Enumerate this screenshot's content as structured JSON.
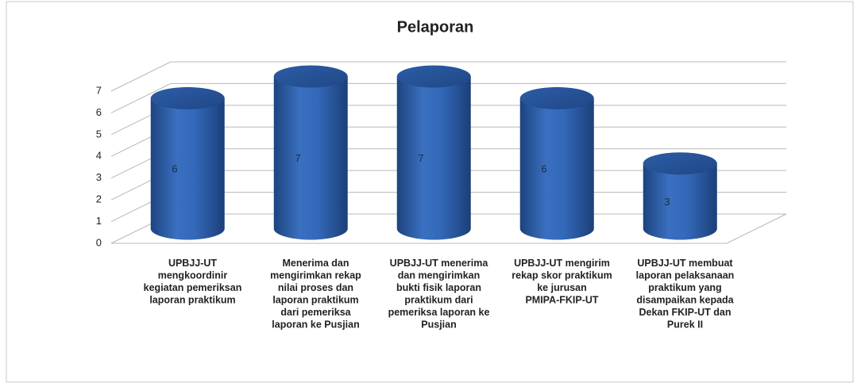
{
  "chart_data": {
    "type": "bar3d",
    "title": "Pelaporan",
    "categories": [
      "UPBJJ-UT mengkoordinir kegiatan pemeriksan laporan praktikum",
      "Menerima dan mengirimkan rekap nilai proses dan laporan praktikum dari pemeriksa laporan ke Pusjian",
      "UPBJJ-UT menerima dan mengirimkan bukti fisik laporan praktikum dari pemeriksa laporan ke Pusjian",
      "UPBJJ-UT mengirim rekap skor praktikum ke jurusan PMIPA-FKIP-UT",
      "UPBJJ-UT membuat laporan pelaksanaan praktikum yang disampaikan kepada Dekan FKIP-UT dan Purek II"
    ],
    "values": [
      6,
      7,
      7,
      6,
      3
    ],
    "color": "#2f62b0",
    "ylim": [
      0,
      7
    ],
    "yticks": [
      0,
      1,
      2,
      3,
      4,
      5,
      6,
      7
    ],
    "grid": true
  }
}
